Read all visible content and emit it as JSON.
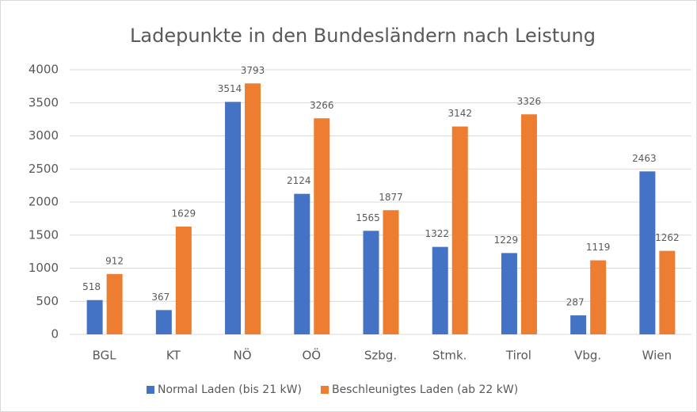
{
  "chart_data": {
    "type": "bar",
    "title": "Ladepunkte in den Bundesländern nach Leistung",
    "categories": [
      "BGL",
      "KT",
      "NÖ",
      "OÖ",
      "Szbg.",
      "Stmk.",
      "Tirol",
      "Vbg.",
      "Wien"
    ],
    "series": [
      {
        "name": "Normal Laden (bis 21 kW)",
        "color": "#4472c4",
        "values": [
          518,
          367,
          3514,
          2124,
          1565,
          1322,
          1229,
          287,
          2463
        ]
      },
      {
        "name": "Beschleunigtes Laden (ab 22 kW)",
        "color": "#ed7d31",
        "values": [
          912,
          1629,
          3793,
          3266,
          1877,
          3142,
          3326,
          1119,
          1262
        ]
      }
    ],
    "ylim": [
      0,
      4000
    ],
    "yticks": [
      0,
      500,
      1000,
      1500,
      2000,
      2500,
      3000,
      3500,
      4000
    ],
    "grid": true,
    "legend": "bottom"
  }
}
